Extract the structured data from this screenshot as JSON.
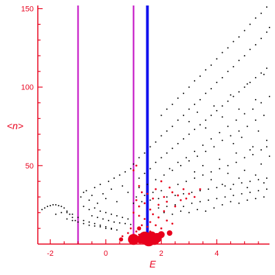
{
  "chart_data": {
    "type": "scatter",
    "title": "",
    "xlabel": "E",
    "ylabel": "<n>",
    "xlim": [
      -2.45,
      5.9
    ],
    "ylim": [
      0,
      152
    ],
    "xticks": [
      "-2",
      "0",
      "2",
      "4"
    ],
    "yticks": [
      "50",
      "100",
      "150"
    ],
    "xtick_values": [
      -2,
      0,
      2,
      4
    ],
    "ytick_values": [
      50,
      100,
      150
    ],
    "grid": false,
    "legend": "none",
    "colors": {
      "axis": "#e8001c",
      "black_points": "#000000",
      "red_points": "#e8001c",
      "magenta_lines": "#cc33cc",
      "blue_line": "#1010ee"
    },
    "vertical_lines": [
      {
        "x": -1.0,
        "color": "magenta"
      },
      {
        "x": 1.0,
        "color": "magenta"
      },
      {
        "x": 1.5,
        "color": "blue"
      }
    ],
    "series": [
      {
        "color": "black",
        "marker": "dot",
        "description_points": [
          [
            -2.3,
            22
          ],
          [
            -2.2,
            23
          ],
          [
            -2.1,
            24
          ],
          [
            -2.0,
            24.5
          ],
          [
            -1.9,
            25
          ],
          [
            -1.8,
            25
          ],
          [
            -1.7,
            24.5
          ],
          [
            -1.6,
            24
          ],
          [
            -1.5,
            23
          ],
          [
            -1.4,
            21
          ],
          [
            -1.3,
            19
          ],
          [
            -1.2,
            17
          ],
          [
            -1.1,
            15
          ],
          [
            -1.8,
            19
          ],
          [
            -1.6,
            20
          ],
          [
            -1.4,
            20
          ],
          [
            -1.2,
            19
          ],
          [
            -1.0,
            17
          ],
          [
            -0.8,
            15
          ],
          [
            -0.6,
            14
          ],
          [
            -0.4,
            13
          ],
          [
            -0.2,
            12
          ],
          [
            0.0,
            11
          ],
          [
            0.2,
            10
          ],
          [
            -1.4,
            16
          ],
          [
            -1.2,
            15
          ],
          [
            -1.0,
            14
          ],
          [
            -0.8,
            13
          ],
          [
            -0.6,
            12
          ],
          [
            -0.4,
            11.5
          ],
          [
            -0.2,
            11
          ],
          [
            0.0,
            10
          ],
          [
            0.2,
            9.5
          ],
          [
            0.4,
            9
          ],
          [
            -0.9,
            30
          ],
          [
            -0.8,
            33
          ],
          [
            -0.7,
            34
          ],
          [
            -0.6,
            28
          ],
          [
            -0.5,
            31
          ],
          [
            -0.4,
            36
          ],
          [
            -0.3,
            26
          ],
          [
            -0.2,
            38
          ],
          [
            -0.1,
            32
          ],
          [
            0.0,
            29
          ],
          [
            0.1,
            40
          ],
          [
            0.2,
            35
          ],
          [
            0.3,
            42
          ],
          [
            0.4,
            27
          ],
          [
            0.5,
            44
          ],
          [
            0.6,
            37
          ],
          [
            0.7,
            46
          ],
          [
            0.8,
            33
          ],
          [
            0.9,
            48
          ],
          [
            -0.8,
            24
          ],
          [
            -0.6,
            22
          ],
          [
            -0.4,
            23
          ],
          [
            -0.2,
            21
          ],
          [
            0.0,
            20
          ],
          [
            0.2,
            19
          ],
          [
            0.4,
            18
          ],
          [
            0.6,
            17
          ],
          [
            0.8,
            16
          ],
          [
            -0.5,
            18
          ],
          [
            -0.3,
            17
          ],
          [
            -0.1,
            16
          ],
          [
            0.1,
            15
          ],
          [
            0.3,
            14
          ],
          [
            0.5,
            13.5
          ],
          [
            0.7,
            13
          ],
          [
            0.9,
            12.5
          ],
          [
            1.0,
            51
          ],
          [
            1.2,
            55
          ],
          [
            1.4,
            58
          ],
          [
            1.6,
            62
          ],
          [
            1.8,
            65
          ],
          [
            2.0,
            69
          ],
          [
            2.2,
            72
          ],
          [
            2.4,
            75
          ],
          [
            2.6,
            79
          ],
          [
            2.8,
            82
          ],
          [
            3.0,
            86
          ],
          [
            3.2,
            89
          ],
          [
            3.4,
            92
          ],
          [
            3.6,
            96
          ],
          [
            3.8,
            99
          ],
          [
            4.0,
            103
          ],
          [
            4.2,
            106
          ],
          [
            4.4,
            110
          ],
          [
            4.6,
            113
          ],
          [
            4.8,
            117
          ],
          [
            5.0,
            120
          ],
          [
            5.2,
            124
          ],
          [
            5.4,
            127
          ],
          [
            5.6,
            131
          ],
          [
            5.8,
            135
          ],
          [
            5.9,
            138
          ],
          [
            2.0,
            82
          ],
          [
            2.2,
            86
          ],
          [
            2.4,
            89
          ],
          [
            2.6,
            93
          ],
          [
            2.8,
            96
          ],
          [
            3.0,
            100
          ],
          [
            3.2,
            104
          ],
          [
            3.4,
            107
          ],
          [
            3.6,
            111
          ],
          [
            3.8,
            114
          ],
          [
            4.0,
            118
          ],
          [
            4.2,
            122
          ],
          [
            4.4,
            125
          ],
          [
            4.6,
            129
          ],
          [
            4.8,
            132
          ],
          [
            5.0,
            136
          ],
          [
            5.2,
            140
          ],
          [
            5.4,
            144
          ],
          [
            5.6,
            147
          ],
          [
            5.8,
            151
          ],
          [
            1.2,
            42
          ],
          [
            1.4,
            45
          ],
          [
            1.6,
            48
          ],
          [
            1.8,
            52
          ],
          [
            2.0,
            55
          ],
          [
            2.2,
            58
          ],
          [
            2.4,
            61
          ],
          [
            2.6,
            64
          ],
          [
            2.8,
            67
          ],
          [
            3.0,
            70
          ],
          [
            3.2,
            73
          ],
          [
            3.4,
            76
          ],
          [
            3.6,
            79
          ],
          [
            3.8,
            82
          ],
          [
            4.0,
            85
          ],
          [
            4.2,
            88
          ],
          [
            4.4,
            91
          ],
          [
            4.6,
            94
          ],
          [
            4.8,
            97
          ],
          [
            5.0,
            100
          ],
          [
            5.2,
            103
          ],
          [
            5.4,
            106
          ],
          [
            5.6,
            109
          ],
          [
            5.8,
            112
          ],
          [
            1.2,
            36
          ],
          [
            1.5,
            38
          ],
          [
            1.8,
            41
          ],
          [
            2.1,
            44
          ],
          [
            2.4,
            47
          ],
          [
            2.7,
            50
          ],
          [
            3.0,
            53
          ],
          [
            3.3,
            56
          ],
          [
            3.6,
            59
          ],
          [
            3.9,
            62
          ],
          [
            4.2,
            66
          ],
          [
            4.5,
            69
          ],
          [
            4.8,
            72
          ],
          [
            5.1,
            75
          ],
          [
            5.4,
            79
          ],
          [
            5.7,
            82
          ],
          [
            1.1,
            30
          ],
          [
            1.4,
            31
          ],
          [
            1.7,
            33
          ],
          [
            2.0,
            34
          ],
          [
            2.3,
            36
          ],
          [
            2.6,
            38
          ],
          [
            2.9,
            40
          ],
          [
            3.2,
            42
          ],
          [
            3.5,
            44
          ],
          [
            3.8,
            46
          ],
          [
            4.1,
            48
          ],
          [
            4.4,
            50
          ],
          [
            4.7,
            52
          ],
          [
            5.0,
            55
          ],
          [
            5.3,
            57
          ],
          [
            5.6,
            60
          ],
          [
            5.8,
            62
          ],
          [
            1.0,
            26
          ],
          [
            1.3,
            27
          ],
          [
            1.6,
            28
          ],
          [
            1.9,
            29
          ],
          [
            2.2,
            30
          ],
          [
            2.5,
            31
          ],
          [
            2.8,
            32
          ],
          [
            3.1,
            33
          ],
          [
            3.4,
            34
          ],
          [
            3.7,
            35
          ],
          [
            4.0,
            36
          ],
          [
            4.3,
            37
          ],
          [
            4.6,
            38
          ],
          [
            4.9,
            39
          ],
          [
            5.2,
            40
          ],
          [
            5.5,
            41
          ],
          [
            5.8,
            42
          ],
          [
            1.6,
            22
          ],
          [
            1.9,
            23
          ],
          [
            2.2,
            24
          ],
          [
            2.5,
            25
          ],
          [
            2.8,
            24
          ],
          [
            3.1,
            26
          ],
          [
            3.4,
            27
          ],
          [
            3.7,
            28
          ],
          [
            4.0,
            29
          ],
          [
            4.3,
            30
          ],
          [
            4.6,
            31
          ],
          [
            4.9,
            32
          ],
          [
            5.2,
            33
          ],
          [
            5.5,
            34
          ],
          [
            5.8,
            35
          ],
          [
            2.3,
            48
          ],
          [
            2.6,
            52
          ],
          [
            2.9,
            55
          ],
          [
            3.2,
            59
          ],
          [
            3.5,
            63
          ],
          [
            3.8,
            67
          ],
          [
            4.1,
            71
          ],
          [
            4.4,
            75
          ],
          [
            4.7,
            79
          ],
          [
            5.0,
            83
          ],
          [
            5.3,
            86
          ],
          [
            5.6,
            90
          ],
          [
            5.9,
            94
          ],
          [
            3.0,
            78
          ],
          [
            3.3,
            84
          ],
          [
            3.6,
            74
          ],
          [
            3.9,
            88
          ],
          [
            4.2,
            81
          ],
          [
            4.5,
            95
          ],
          [
            4.8,
            86
          ],
          [
            5.1,
            102
          ],
          [
            5.4,
            92
          ],
          [
            5.7,
            108
          ],
          [
            4.6,
            64
          ],
          [
            4.9,
            68
          ],
          [
            5.2,
            60
          ],
          [
            5.5,
            72
          ],
          [
            5.8,
            66
          ],
          [
            3.2,
            46
          ],
          [
            3.5,
            50
          ],
          [
            3.8,
            41
          ],
          [
            4.1,
            54
          ],
          [
            4.4,
            45
          ],
          [
            4.7,
            58
          ],
          [
            5.0,
            47
          ],
          [
            5.3,
            62
          ],
          [
            5.6,
            51
          ],
          [
            5.9,
            56
          ],
          [
            4.2,
            38
          ],
          [
            4.5,
            35
          ],
          [
            4.8,
            42
          ],
          [
            5.1,
            36
          ],
          [
            5.4,
            44
          ],
          [
            5.7,
            39
          ],
          [
            2.1,
            20
          ],
          [
            2.4,
            19
          ],
          [
            2.7,
            21
          ],
          [
            3.0,
            20
          ],
          [
            3.3,
            22
          ],
          [
            3.6,
            21
          ],
          [
            3.9,
            23
          ],
          [
            4.2,
            25
          ],
          [
            4.5,
            27
          ],
          [
            4.8,
            26
          ],
          [
            5.1,
            28
          ],
          [
            5.4,
            29
          ],
          [
            5.7,
            30
          ]
        ]
      },
      {
        "color": "red",
        "marker": "dot",
        "description_points": [
          [
            1.0,
            47
          ],
          [
            1.1,
            50
          ],
          [
            1.2,
            37
          ],
          [
            1.3,
            33
          ],
          [
            1.1,
            28
          ],
          [
            1.2,
            24
          ],
          [
            1.4,
            26
          ],
          [
            1.5,
            32
          ],
          [
            1.6,
            22
          ],
          [
            1.7,
            29
          ],
          [
            1.8,
            35
          ],
          [
            1.9,
            25
          ],
          [
            2.0,
            40
          ],
          [
            2.1,
            30
          ],
          [
            2.2,
            27
          ],
          [
            2.3,
            36
          ],
          [
            2.4,
            33
          ],
          [
            2.5,
            24
          ],
          [
            2.6,
            31
          ],
          [
            2.7,
            28
          ],
          [
            2.8,
            35
          ],
          [
            2.9,
            29
          ],
          [
            3.0,
            32
          ],
          [
            3.2,
            30
          ],
          [
            3.4,
            35
          ],
          [
            1.0,
            20
          ],
          [
            1.2,
            18
          ],
          [
            1.4,
            16
          ],
          [
            1.6,
            14
          ],
          [
            1.8,
            12
          ],
          [
            2.0,
            10
          ],
          [
            2.2,
            15
          ],
          [
            2.4,
            13
          ],
          [
            1.3,
            12
          ],
          [
            1.5,
            11
          ],
          [
            0.9,
            10
          ],
          [
            1.1,
            8
          ],
          [
            1.7,
            19
          ],
          [
            1.9,
            17
          ],
          [
            2.1,
            21
          ],
          [
            0.6,
            5
          ],
          [
            0.8,
            7
          ],
          [
            1.2,
            6
          ],
          [
            1.6,
            8
          ]
        ]
      },
      {
        "color": "red",
        "marker": "large-dot",
        "description_points": [
          [
            1.0,
            3,
            8
          ],
          [
            1.25,
            3,
            6
          ],
          [
            1.4,
            4,
            9
          ],
          [
            1.55,
            3,
            10
          ],
          [
            1.65,
            5,
            7
          ],
          [
            1.75,
            3,
            8
          ],
          [
            1.85,
            4,
            7
          ],
          [
            2.0,
            6,
            5
          ],
          [
            2.3,
            7,
            4
          ],
          [
            0.55,
            3,
            3
          ],
          [
            1.2,
            10,
            3
          ]
        ]
      }
    ]
  }
}
